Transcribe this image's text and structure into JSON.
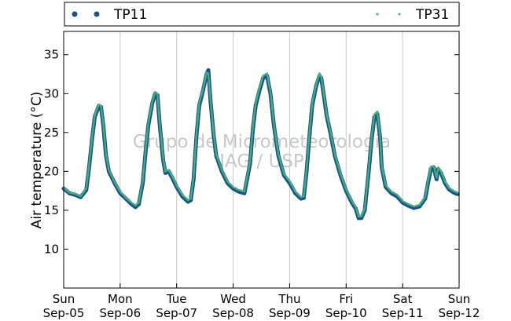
{
  "chart_data": {
    "type": "line",
    "ylabel": "Air temperature (°C)",
    "xlabel": "",
    "ylim": [
      5,
      38
    ],
    "xlim": [
      0,
      7
    ],
    "yticks": [
      10,
      15,
      20,
      25,
      30,
      35
    ],
    "x_ticks": [
      {
        "x": 0,
        "day": "Sun",
        "date": "Sep-05"
      },
      {
        "x": 1,
        "day": "Mon",
        "date": "Sep-06"
      },
      {
        "x": 2,
        "day": "Tue",
        "date": "Sep-07"
      },
      {
        "x": 3,
        "day": "Wed",
        "date": "Sep-08"
      },
      {
        "x": 4,
        "day": "Thu",
        "date": "Sep-09"
      },
      {
        "x": 5,
        "day": "Fri",
        "date": "Sep-10"
      },
      {
        "x": 6,
        "day": "Sat",
        "date": "Sep-11"
      },
      {
        "x": 7,
        "day": "Sun",
        "date": "Sep-12"
      }
    ],
    "grid": "vertical",
    "legend_position": "top",
    "watermark": [
      "Grupo de Micrometeorologia",
      "IAG / USP"
    ],
    "series": [
      {
        "name": "TP11",
        "color": "#1f4e8c",
        "marker": "circle",
        "points": [
          [
            0.0,
            17.8
          ],
          [
            0.1,
            17.2
          ],
          [
            0.2,
            17.0
          ],
          [
            0.3,
            16.7
          ],
          [
            0.4,
            17.6
          ],
          [
            0.45,
            20.5
          ],
          [
            0.5,
            24.0
          ],
          [
            0.55,
            27.0
          ],
          [
            0.62,
            28.4
          ],
          [
            0.66,
            28.3
          ],
          [
            0.7,
            26.0
          ],
          [
            0.75,
            22.0
          ],
          [
            0.8,
            20.0
          ],
          [
            0.9,
            18.5
          ],
          [
            1.0,
            17.2
          ],
          [
            1.1,
            16.5
          ],
          [
            1.2,
            15.8
          ],
          [
            1.27,
            15.4
          ],
          [
            1.33,
            15.8
          ],
          [
            1.4,
            18.5
          ],
          [
            1.45,
            22.5
          ],
          [
            1.5,
            26.0
          ],
          [
            1.57,
            28.8
          ],
          [
            1.62,
            30.0
          ],
          [
            1.66,
            29.8
          ],
          [
            1.7,
            26.0
          ],
          [
            1.76,
            21.5
          ],
          [
            1.8,
            19.8
          ],
          [
            1.86,
            20.0
          ],
          [
            1.92,
            19.2
          ],
          [
            2.0,
            18.0
          ],
          [
            2.1,
            16.8
          ],
          [
            2.2,
            16.1
          ],
          [
            2.25,
            16.3
          ],
          [
            2.3,
            19.0
          ],
          [
            2.35,
            24.5
          ],
          [
            2.4,
            28.5
          ],
          [
            2.47,
            30.5
          ],
          [
            2.53,
            32.5
          ],
          [
            2.56,
            33.0
          ],
          [
            2.6,
            29.0
          ],
          [
            2.65,
            25.0
          ],
          [
            2.7,
            22.0
          ],
          [
            2.8,
            20.0
          ],
          [
            2.9,
            18.5
          ],
          [
            3.0,
            17.8
          ],
          [
            3.1,
            17.4
          ],
          [
            3.2,
            17.2
          ],
          [
            3.3,
            21.0
          ],
          [
            3.35,
            25.5
          ],
          [
            3.4,
            28.5
          ],
          [
            3.47,
            30.5
          ],
          [
            3.53,
            32.0
          ],
          [
            3.6,
            32.3
          ],
          [
            3.66,
            30.0
          ],
          [
            3.72,
            26.0
          ],
          [
            3.8,
            22.0
          ],
          [
            3.9,
            19.5
          ],
          [
            4.0,
            18.5
          ],
          [
            4.1,
            17.2
          ],
          [
            4.2,
            16.5
          ],
          [
            4.25,
            16.6
          ],
          [
            4.3,
            20.0
          ],
          [
            4.35,
            24.5
          ],
          [
            4.4,
            28.5
          ],
          [
            4.47,
            31.0
          ],
          [
            4.53,
            32.3
          ],
          [
            4.56,
            32.0
          ],
          [
            4.6,
            30.0
          ],
          [
            4.66,
            27.0
          ],
          [
            4.72,
            25.0
          ],
          [
            4.8,
            22.0
          ],
          [
            4.9,
            19.5
          ],
          [
            5.0,
            17.5
          ],
          [
            5.1,
            16.0
          ],
          [
            5.17,
            15.2
          ],
          [
            5.22,
            14.0
          ],
          [
            5.27,
            14.0
          ],
          [
            5.33,
            15.0
          ],
          [
            5.4,
            20.0
          ],
          [
            5.45,
            24.0
          ],
          [
            5.5,
            27.0
          ],
          [
            5.55,
            27.4
          ],
          [
            5.6,
            24.5
          ],
          [
            5.63,
            20.5
          ],
          [
            5.7,
            18.0
          ],
          [
            5.8,
            17.2
          ],
          [
            5.9,
            16.8
          ],
          [
            6.0,
            16.0
          ],
          [
            6.1,
            15.6
          ],
          [
            6.2,
            15.3
          ],
          [
            6.3,
            15.5
          ],
          [
            6.4,
            16.5
          ],
          [
            6.45,
            18.5
          ],
          [
            6.5,
            20.3
          ],
          [
            6.55,
            20.5
          ],
          [
            6.6,
            19.0
          ],
          [
            6.63,
            20.3
          ],
          [
            6.68,
            19.8
          ],
          [
            6.75,
            18.5
          ],
          [
            6.82,
            17.7
          ],
          [
            6.9,
            17.3
          ],
          [
            7.0,
            17.0
          ]
        ]
      },
      {
        "name": "TP31",
        "color": "#3db37a",
        "marker": "dot",
        "points": [
          [
            0.0,
            17.9
          ],
          [
            0.1,
            17.3
          ],
          [
            0.2,
            17.1
          ],
          [
            0.3,
            16.8
          ],
          [
            0.4,
            17.8
          ],
          [
            0.45,
            20.8
          ],
          [
            0.5,
            24.2
          ],
          [
            0.55,
            27.2
          ],
          [
            0.62,
            28.6
          ],
          [
            0.66,
            28.4
          ],
          [
            0.7,
            26.2
          ],
          [
            0.75,
            22.2
          ],
          [
            0.8,
            20.2
          ],
          [
            0.9,
            18.6
          ],
          [
            1.0,
            17.4
          ],
          [
            1.1,
            16.6
          ],
          [
            1.2,
            16.0
          ],
          [
            1.27,
            15.6
          ],
          [
            1.33,
            16.0
          ],
          [
            1.4,
            18.8
          ],
          [
            1.45,
            22.8
          ],
          [
            1.5,
            26.3
          ],
          [
            1.57,
            29.0
          ],
          [
            1.62,
            30.2
          ],
          [
            1.66,
            30.0
          ],
          [
            1.7,
            26.2
          ],
          [
            1.76,
            21.8
          ],
          [
            1.8,
            20.0
          ],
          [
            1.86,
            20.2
          ],
          [
            1.92,
            19.4
          ],
          [
            2.0,
            18.2
          ],
          [
            2.1,
            17.0
          ],
          [
            2.2,
            16.3
          ],
          [
            2.25,
            16.5
          ],
          [
            2.3,
            19.3
          ],
          [
            2.35,
            24.8
          ],
          [
            2.4,
            28.8
          ],
          [
            2.47,
            30.7
          ],
          [
            2.53,
            32.7
          ],
          [
            2.56,
            32.6
          ],
          [
            2.6,
            29.2
          ],
          [
            2.65,
            25.2
          ],
          [
            2.7,
            22.2
          ],
          [
            2.8,
            20.2
          ],
          [
            2.9,
            18.7
          ],
          [
            3.0,
            18.0
          ],
          [
            3.1,
            17.6
          ],
          [
            3.2,
            17.4
          ],
          [
            3.3,
            21.3
          ],
          [
            3.35,
            25.8
          ],
          [
            3.4,
            28.8
          ],
          [
            3.47,
            30.8
          ],
          [
            3.53,
            32.3
          ],
          [
            3.6,
            32.6
          ],
          [
            3.66,
            30.2
          ],
          [
            3.72,
            26.2
          ],
          [
            3.8,
            22.2
          ],
          [
            3.9,
            19.7
          ],
          [
            4.0,
            18.7
          ],
          [
            4.1,
            17.4
          ],
          [
            4.2,
            16.7
          ],
          [
            4.25,
            16.8
          ],
          [
            4.3,
            20.3
          ],
          [
            4.35,
            24.8
          ],
          [
            4.4,
            28.8
          ],
          [
            4.47,
            31.2
          ],
          [
            4.53,
            32.6
          ],
          [
            4.56,
            32.2
          ],
          [
            4.6,
            30.2
          ],
          [
            4.66,
            27.2
          ],
          [
            4.72,
            25.2
          ],
          [
            4.8,
            22.2
          ],
          [
            4.9,
            19.7
          ],
          [
            5.0,
            17.7
          ],
          [
            5.1,
            16.2
          ],
          [
            5.17,
            15.4
          ],
          [
            5.22,
            14.2
          ],
          [
            5.27,
            14.2
          ],
          [
            5.33,
            15.2
          ],
          [
            5.4,
            20.3
          ],
          [
            5.45,
            24.3
          ],
          [
            5.5,
            27.3
          ],
          [
            5.55,
            27.7
          ],
          [
            5.6,
            24.7
          ],
          [
            5.63,
            20.7
          ],
          [
            5.7,
            18.2
          ],
          [
            5.8,
            17.4
          ],
          [
            5.9,
            17.0
          ],
          [
            6.0,
            16.2
          ],
          [
            6.1,
            15.8
          ],
          [
            6.2,
            15.5
          ],
          [
            6.3,
            15.7
          ],
          [
            6.4,
            16.7
          ],
          [
            6.45,
            18.8
          ],
          [
            6.5,
            20.6
          ],
          [
            6.55,
            20.7
          ],
          [
            6.6,
            19.2
          ],
          [
            6.63,
            20.5
          ],
          [
            6.68,
            20.0
          ],
          [
            6.75,
            18.7
          ],
          [
            6.82,
            17.9
          ],
          [
            6.9,
            17.5
          ],
          [
            7.0,
            17.2
          ]
        ]
      }
    ]
  }
}
